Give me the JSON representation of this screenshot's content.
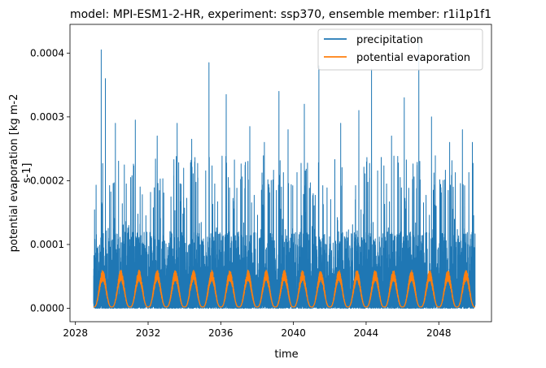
{
  "chart_data": {
    "type": "line",
    "title": "model: MPI-ESM1-2-HR, experiment: ssp370, ensemble member: r1i1p1f1",
    "xlabel": "time",
    "ylabel_lines": [
      "potential evaporation [kg m-2",
      "s-1]"
    ],
    "xlim": [
      2027.7,
      2050.9
    ],
    "ylim": [
      -2.1e-05,
      0.000445
    ],
    "x_ticks": [
      2028,
      2032,
      2036,
      2040,
      2044,
      2048
    ],
    "x_tick_labels": [
      "2028",
      "2032",
      "2036",
      "2040",
      "2044",
      "2048"
    ],
    "y_ticks": [
      0.0,
      0.0001,
      0.0002,
      0.0003,
      0.0004
    ],
    "y_tick_labels": [
      "0.0000",
      "0.0001",
      "0.0002",
      "0.0003",
      "0.0004"
    ],
    "legend_position": "top-right",
    "time_range": [
      2029.0,
      2050.0
    ],
    "samples_per_year": 365,
    "series": [
      {
        "name": "precipitation",
        "color": "#1f77b4",
        "typical_upper": 0.00012,
        "peaks": [
          [
            2029.42,
            0.000405
          ],
          [
            2029.65,
            0.00036
          ],
          [
            2030.2,
            0.00029
          ],
          [
            2031.3,
            0.000295
          ],
          [
            2032.5,
            0.00027
          ],
          [
            2033.6,
            0.00029
          ],
          [
            2034.4,
            0.000265
          ],
          [
            2035.35,
            0.000385
          ],
          [
            2036.3,
            0.000335
          ],
          [
            2037.6,
            0.000285
          ],
          [
            2038.4,
            0.00026
          ],
          [
            2039.2,
            0.00034
          ],
          [
            2039.7,
            0.00028
          ],
          [
            2040.6,
            0.00032
          ],
          [
            2041.4,
            0.00038
          ],
          [
            2042.6,
            0.00029
          ],
          [
            2043.6,
            0.00031
          ],
          [
            2044.3,
            0.000375
          ],
          [
            2045.4,
            0.00027
          ],
          [
            2046.1,
            0.00033
          ],
          [
            2046.9,
            0.00042
          ],
          [
            2047.6,
            0.0003
          ],
          [
            2048.6,
            0.00026
          ],
          [
            2049.3,
            0.00028
          ],
          [
            2049.85,
            0.00026
          ]
        ]
      },
      {
        "name": "potential evaporation",
        "color": "#ff7f0e",
        "seasonal_peak": 5.8e-05,
        "baseline": 2e-06
      }
    ]
  }
}
